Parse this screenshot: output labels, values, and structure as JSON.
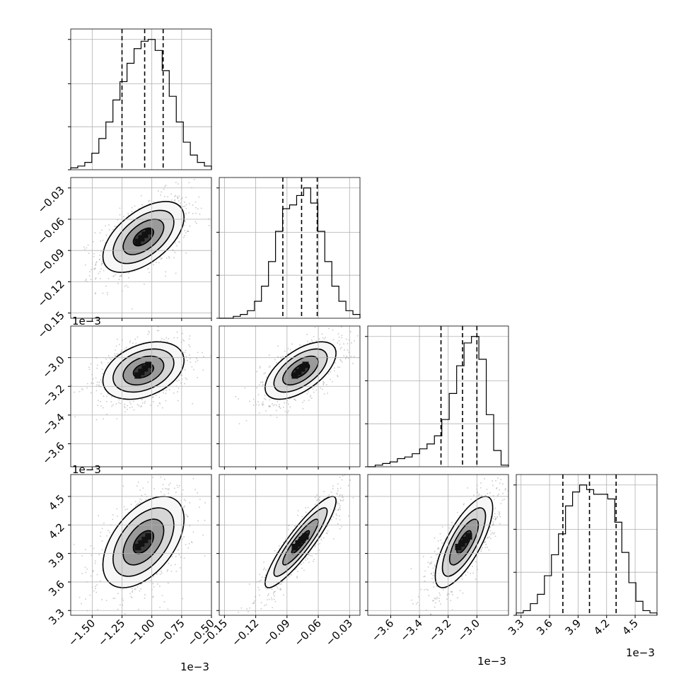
{
  "colors": {
    "background": "#ffffff",
    "axes": "#000000",
    "grid": "#b0b0b0",
    "points": "#8c8c8c",
    "density_dark": "#000000",
    "density_light": "#f2f2f2"
  },
  "chart_data": {
    "type": "corner",
    "parameters": [
      {
        "id": "p1",
        "range": [
          -0.00168,
          -0.0005
        ],
        "ticks": [
          -1.5,
          -1.25,
          -1.0,
          -0.75,
          -0.5
        ],
        "tick_labels": [
          "−1.50",
          "−1.25",
          "−1.00",
          "−0.75",
          "−0.50"
        ],
        "scale_factor": 0.001,
        "offset_text": "1e−3",
        "quantiles": [
          -0.00125,
          -0.00106,
          -0.000905
        ],
        "center": -0.00107,
        "sd": 0.00017
      },
      {
        "id": "p2",
        "range": [
          -0.155,
          -0.02
        ],
        "ticks": [
          -0.15,
          -0.12,
          -0.09,
          -0.06,
          -0.03
        ],
        "tick_labels": [
          "−0.15",
          "−0.12",
          "−0.09",
          "−0.06",
          "−0.03"
        ],
        "scale_factor": 1,
        "offset_text": "",
        "quantiles": [
          -0.094,
          -0.076,
          -0.061
        ],
        "center": -0.077,
        "sd": 0.017
      },
      {
        "id": "p3",
        "range": [
          -0.00376,
          -0.00278
        ],
        "ticks": [
          -3.6,
          -3.4,
          -3.2,
          -3.0
        ],
        "tick_labels": [
          "−3.6",
          "−3.4",
          "−3.2",
          "−3.0"
        ],
        "scale_factor": 0.001,
        "offset_text": "1e−3",
        "quantiles": [
          -0.00325,
          -0.0031,
          -0.003
        ],
        "center": -0.00309,
        "sd": 0.0001
      },
      {
        "id": "p4",
        "range": [
          0.00325,
          0.00473
        ],
        "ticks": [
          3.3,
          3.6,
          3.9,
          4.2,
          4.5
        ],
        "tick_labels": [
          "3.3",
          "3.6",
          "3.9",
          "4.2",
          "4.5"
        ],
        "scale_factor": 0.001,
        "offset_text": "1e−3",
        "quantiles": [
          0.00374,
          0.00402,
          0.0043
        ],
        "center": 0.00402,
        "sd": 0.00024
      }
    ],
    "histograms": [
      {
        "param": "p1",
        "bin_edges": [
          -0.00168,
          -0.0005
        ],
        "counts": [
          1,
          2,
          4,
          9,
          17,
          26,
          38,
          48,
          58,
          66,
          70,
          71,
          65,
          54,
          40,
          26,
          15,
          8,
          4,
          2
        ]
      },
      {
        "param": "p2",
        "bin_edges": [
          -0.155,
          -0.02
        ],
        "counts": [
          0,
          0,
          1,
          2,
          4,
          9,
          17,
          30,
          46,
          58,
          60,
          65,
          69,
          61,
          46,
          30,
          17,
          9,
          4,
          2
        ]
      },
      {
        "param": "p3",
        "bin_edges": [
          -0.00376,
          -0.00278
        ],
        "counts": [
          0,
          1,
          2,
          3,
          5,
          6,
          8,
          11,
          14,
          19,
          29,
          45,
          62,
          76,
          80,
          66,
          32,
          10,
          1
        ]
      },
      {
        "param": "p4",
        "bin_edges": [
          0.00325,
          0.00473
        ],
        "counts": [
          1,
          2,
          5,
          9,
          17,
          26,
          35,
          47,
          53,
          56,
          54,
          52,
          52,
          50,
          40,
          27,
          14,
          6,
          2,
          1
        ]
      }
    ],
    "pairs": [
      {
        "x": "p1",
        "y": "p2",
        "correlation": 0.55
      },
      {
        "x": "p1",
        "y": "p3",
        "correlation": 0.35
      },
      {
        "x": "p2",
        "y": "p3",
        "correlation": 0.6
      },
      {
        "x": "p1",
        "y": "p4",
        "correlation": 0.5
      },
      {
        "x": "p2",
        "y": "p4",
        "correlation": 0.9
      },
      {
        "x": "p3",
        "y": "p4",
        "correlation": 0.75
      }
    ],
    "grid": true,
    "quantile_line_style": "dashed",
    "contour_levels": [
      "0.5 sigma",
      "1 sigma",
      "1.5 sigma",
      "2 sigma"
    ]
  }
}
